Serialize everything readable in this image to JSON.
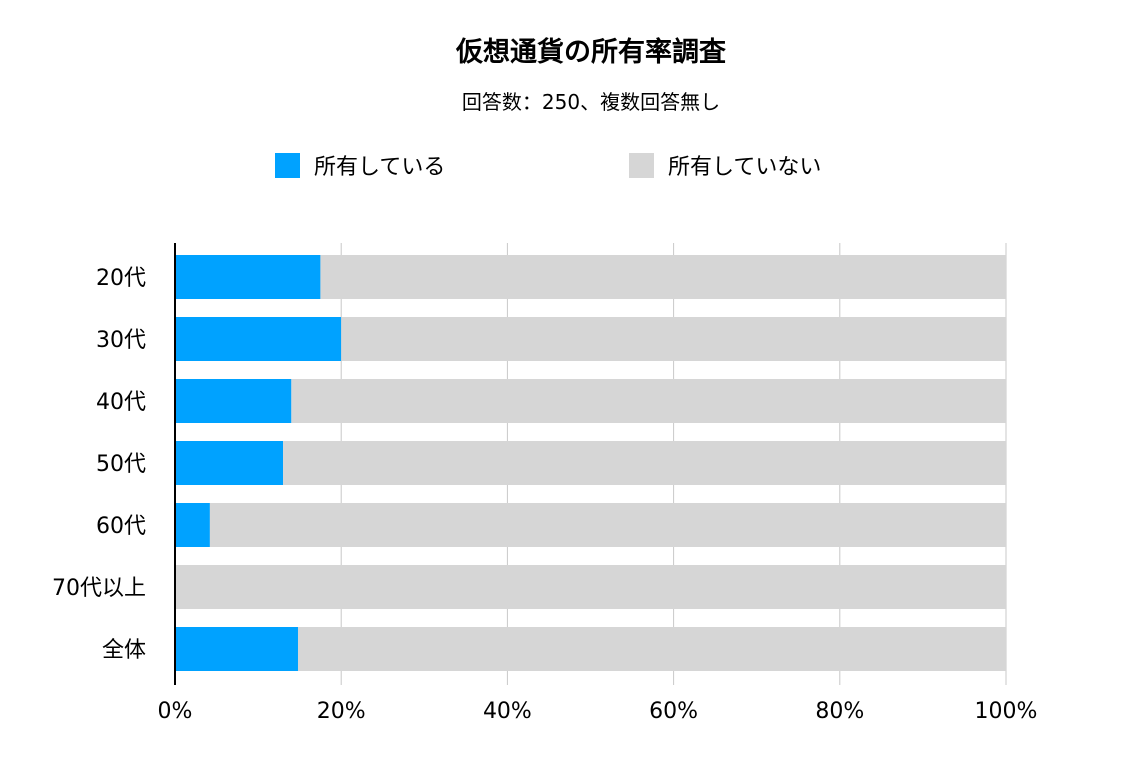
{
  "chart_data": {
    "type": "bar",
    "orientation": "horizontal",
    "stacked": true,
    "percent": true,
    "title": "仮想通貨の所有率調査",
    "subtitle": "回答数：250、複数回答無し",
    "categories": [
      "20代",
      "30代",
      "40代",
      "50代",
      "60代",
      "70代以上",
      "全体"
    ],
    "series": [
      {
        "name": "所有している",
        "color": "#00a2ff",
        "values": [
          17.5,
          20,
          14,
          13,
          4.2,
          0,
          14.8
        ]
      },
      {
        "name": "所有していない",
        "color": "#d6d6d6",
        "values": [
          82.5,
          80,
          86,
          87,
          95.8,
          100,
          85.2
        ]
      }
    ],
    "x_ticks": [
      "0%",
      "20%",
      "40%",
      "60%",
      "80%",
      "100%"
    ],
    "xlim": [
      0,
      100
    ],
    "xlabel": "",
    "ylabel": "",
    "grid": "vertical",
    "legend_position": "top"
  }
}
